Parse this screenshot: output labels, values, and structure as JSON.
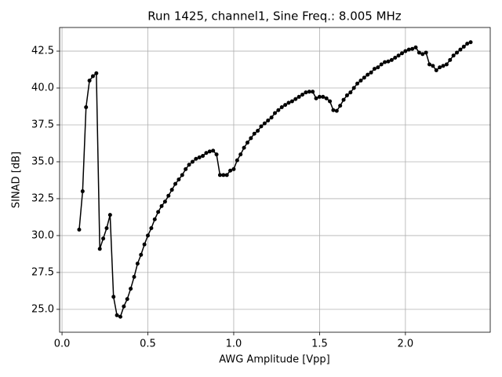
{
  "chart_data": {
    "type": "line",
    "title": "Run 1425, channel1, Sine Freq.: 8.005 MHz",
    "x_label": "AWG Amplitude [Vpp]",
    "y_label": "SINAD [dB]",
    "color": "#000000",
    "grid": true,
    "x": [
      0.1,
      0.12,
      0.14,
      0.16,
      0.18,
      0.2,
      0.22,
      0.24,
      0.26,
      0.28,
      0.3,
      0.32,
      0.34,
      0.36,
      0.38,
      0.4,
      0.42,
      0.44,
      0.46,
      0.48,
      0.5,
      0.52,
      0.54,
      0.56,
      0.58,
      0.6,
      0.62,
      0.64,
      0.66,
      0.68,
      0.7,
      0.72,
      0.74,
      0.76,
      0.78,
      0.8,
      0.82,
      0.84,
      0.86,
      0.88,
      0.9,
      0.92,
      0.94,
      0.96,
      0.98,
      1.0,
      1.02,
      1.04,
      1.06,
      1.08,
      1.1,
      1.12,
      1.14,
      1.16,
      1.18,
      1.2,
      1.22,
      1.24,
      1.26,
      1.28,
      1.3,
      1.32,
      1.34,
      1.36,
      1.38,
      1.4,
      1.42,
      1.44,
      1.46,
      1.48,
      1.5,
      1.52,
      1.54,
      1.56,
      1.58,
      1.6,
      1.62,
      1.64,
      1.66,
      1.68,
      1.7,
      1.72,
      1.74,
      1.76,
      1.78,
      1.8,
      1.82,
      1.84,
      1.86,
      1.88,
      1.9,
      1.92,
      1.94,
      1.96,
      1.98,
      2.0,
      2.02,
      2.04,
      2.06,
      2.08,
      2.1,
      2.12,
      2.14,
      2.16,
      2.18,
      2.2,
      2.22,
      2.24,
      2.26,
      2.28,
      2.3,
      2.32,
      2.34,
      2.36,
      2.38
    ],
    "values": [
      30.4,
      33.0,
      38.7,
      40.5,
      40.8,
      41.0,
      29.1,
      29.8,
      30.5,
      31.4,
      25.85,
      24.6,
      24.5,
      25.2,
      25.7,
      26.4,
      27.2,
      28.1,
      28.7,
      29.4,
      30.0,
      30.5,
      31.1,
      31.6,
      32.0,
      32.3,
      32.7,
      33.1,
      33.5,
      33.8,
      34.1,
      34.5,
      34.8,
      35.0,
      35.2,
      35.3,
      35.4,
      35.6,
      35.7,
      35.75,
      35.5,
      34.1,
      34.1,
      34.1,
      34.4,
      34.5,
      35.1,
      35.5,
      35.95,
      36.3,
      36.6,
      36.9,
      37.1,
      37.4,
      37.6,
      37.8,
      38.0,
      38.3,
      38.5,
      38.7,
      38.85,
      39.0,
      39.1,
      39.25,
      39.4,
      39.55,
      39.7,
      39.75,
      39.75,
      39.3,
      39.4,
      39.4,
      39.3,
      39.1,
      38.5,
      38.45,
      38.8,
      39.2,
      39.5,
      39.7,
      40.0,
      40.3,
      40.5,
      40.7,
      40.9,
      41.05,
      41.3,
      41.4,
      41.6,
      41.75,
      41.8,
      41.9,
      42.05,
      42.2,
      42.35,
      42.5,
      42.6,
      42.65,
      42.75,
      42.4,
      42.3,
      42.4,
      41.6,
      41.5,
      41.2,
      41.4,
      41.5,
      41.6,
      41.9,
      42.2,
      42.4,
      42.6,
      42.8,
      43.0,
      43.1
    ],
    "xlim": [
      -0.014,
      2.494
    ],
    "xticks": [
      {
        "value": 0,
        "label": "0.0"
      },
      0.5,
      {
        "value": 1,
        "label": "1.0"
      },
      1.5,
      {
        "value": 2,
        "label": "2.0"
      }
    ],
    "ylim": [
      23.45,
      44.1
    ],
    "yticks": [
      {
        "value": 25,
        "label": "25.0"
      },
      27.5,
      {
        "value": 30,
        "label": "30.0"
      },
      32.5,
      {
        "value": 35,
        "label": "35.0"
      },
      37.5,
      {
        "value": 40,
        "label": "40.0"
      },
      42.5
    ]
  }
}
